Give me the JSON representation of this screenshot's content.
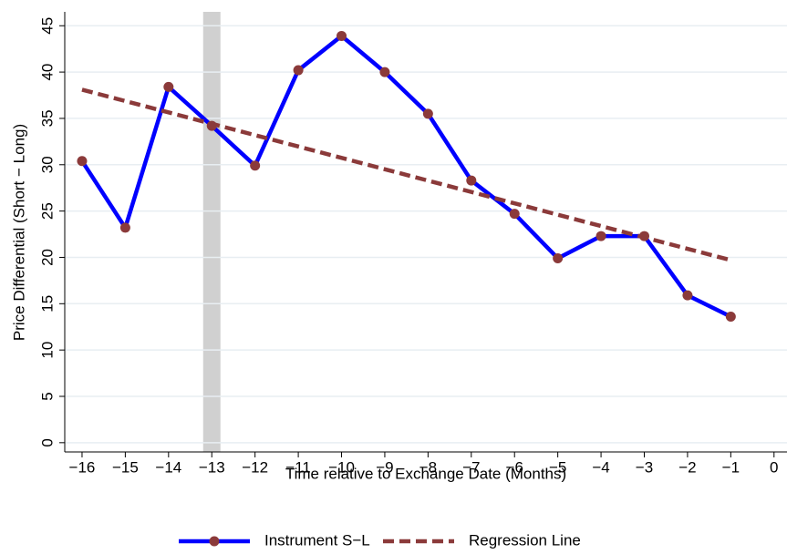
{
  "chart_data": {
    "type": "line",
    "x_label": "Time relative to Exchange Date (Months)",
    "y_label": "Price Differential (Short − Long)",
    "xlim": [
      -16.4,
      0.3
    ],
    "ylim": [
      -1,
      46.5
    ],
    "xticks": [
      {
        "value": -16,
        "label": "−16"
      },
      {
        "value": -15,
        "label": "−15"
      },
      {
        "value": -14,
        "label": "−14"
      },
      {
        "value": -13,
        "label": "−13"
      },
      {
        "value": -12,
        "label": "−12"
      },
      {
        "value": -11,
        "label": "−11"
      },
      {
        "value": -10,
        "label": "−10"
      },
      {
        "value": -9,
        "label": "−9"
      },
      {
        "value": -8,
        "label": "−8"
      },
      {
        "value": -7,
        "label": "−7"
      },
      {
        "value": -6,
        "label": "−6"
      },
      {
        "value": -5,
        "label": "−5"
      },
      {
        "value": -4,
        "label": "−4"
      },
      {
        "value": -3,
        "label": "−3"
      },
      {
        "value": -2,
        "label": "−2"
      },
      {
        "value": -1,
        "label": "−1"
      },
      0
    ],
    "yticks": [
      0,
      5,
      10,
      15,
      20,
      25,
      30,
      35,
      40,
      45
    ],
    "grid": true,
    "highlight_band": [
      -13.2,
      -12.8
    ],
    "highlight_color": "#d0d0d0",
    "series": [
      {
        "name": "Instrument S−L",
        "color": "#0000ff",
        "marker_color": "#8b3a3a",
        "style": "solid",
        "x": [
          -16,
          -15,
          -14,
          -13,
          -12,
          -11,
          -10,
          -9,
          -8,
          -7,
          -6,
          -5,
          -4,
          -3,
          -2,
          -1
        ],
        "values": [
          30.4,
          23.2,
          38.4,
          34.2,
          29.9,
          40.2,
          43.9,
          40.0,
          35.5,
          28.3,
          24.7,
          19.9,
          22.3,
          22.3,
          15.9,
          13.6
        ]
      },
      {
        "name": "Regression Line",
        "color": "#8b3a3a",
        "style": "dashed",
        "x": [
          -16,
          -1
        ],
        "values": [
          38.1,
          19.7
        ]
      }
    ]
  }
}
